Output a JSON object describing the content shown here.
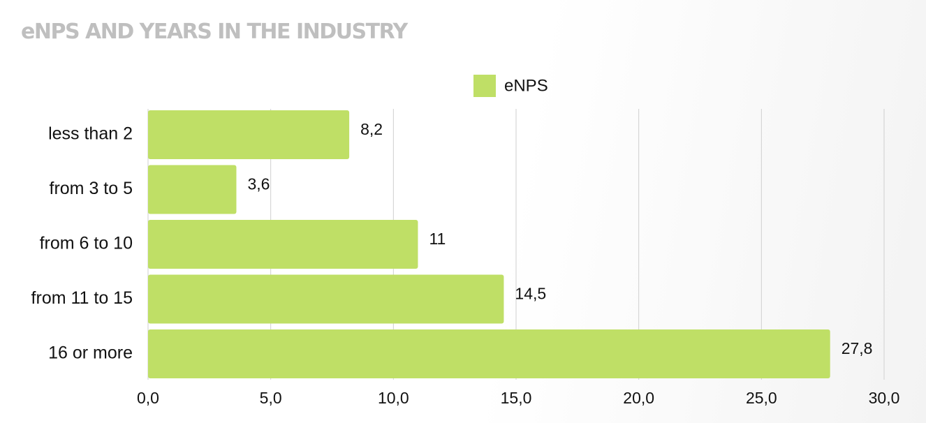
{
  "chart_data": {
    "type": "bar",
    "orientation": "horizontal",
    "title": "eNPS AND YEARS IN THE INDUSTRY",
    "categories": [
      "less than 2",
      "from 3 to 5",
      "from 6 to 10",
      "from 11 to 15",
      "16 or more"
    ],
    "series": [
      {
        "name": "eNPS",
        "values": [
          8.2,
          3.6,
          11,
          14.5,
          27.8
        ],
        "value_labels": [
          "8,2",
          "3,6",
          "11",
          "14,5",
          "27,8"
        ]
      }
    ],
    "xlim": [
      0,
      30
    ],
    "xticks": [
      0,
      5,
      10,
      15,
      20,
      25,
      30
    ],
    "xtick_labels": [
      "0,0",
      "5,0",
      "10,0",
      "15,0",
      "20,0",
      "25,0",
      "30,0"
    ],
    "grid": "vertical",
    "legend": "top-center",
    "colors": {
      "bar": "#bfdf66",
      "grid": "#cfcfcf",
      "title": "#bfbfbf",
      "text": "#111111"
    }
  }
}
